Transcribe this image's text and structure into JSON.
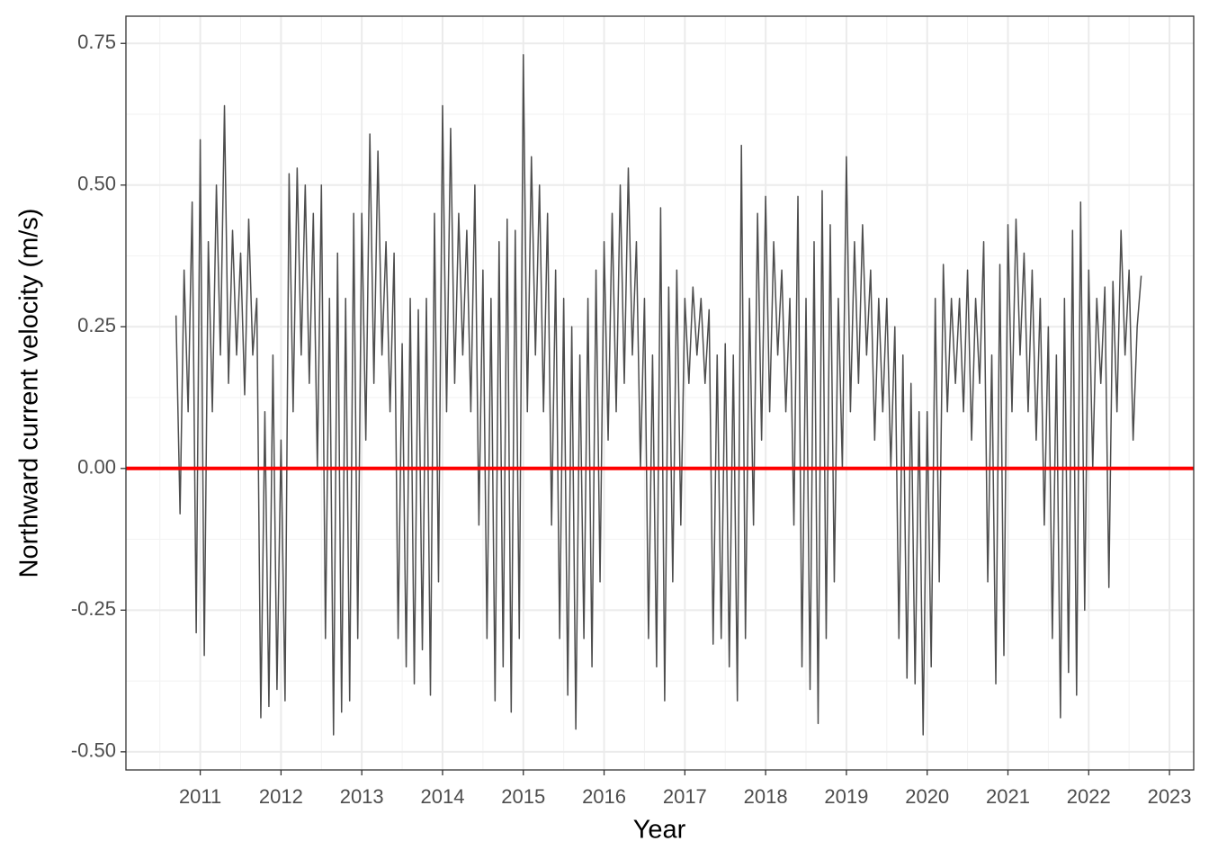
{
  "chart_data": {
    "type": "line",
    "xlabel": "Year",
    "ylabel": "Northward current velocity (m/s)",
    "xlim": [
      2010.08,
      2023.3
    ],
    "xticks": [
      2011,
      2012,
      2013,
      2014,
      2015,
      2016,
      2017,
      2018,
      2019,
      2020,
      2021,
      2022,
      2023
    ],
    "ylim": [
      -0.532,
      0.798
    ],
    "yticks": [
      {
        "value": -0.5,
        "label": "-0.50"
      },
      -0.25,
      {
        "value": 0,
        "label": "0.00"
      },
      0.25,
      {
        "value": 0.5,
        "label": "0.50"
      },
      0.75
    ],
    "grid": true,
    "minor_grid": true,
    "hline": {
      "value": 0,
      "color": "#ff0000"
    },
    "series": [
      {
        "color": "#4d4d4d",
        "x": [
          2010.7,
          2010.75,
          2010.8,
          2010.85,
          2010.9,
          2010.95,
          2011.0,
          2011.05,
          2011.1,
          2011.15,
          2011.2,
          2011.25,
          2011.3,
          2011.35,
          2011.4,
          2011.45,
          2011.5,
          2011.55,
          2011.6,
          2011.65,
          2011.7,
          2011.75,
          2011.8,
          2011.85,
          2011.9,
          2011.95,
          2012.0,
          2012.05,
          2012.1,
          2012.15,
          2012.2,
          2012.25,
          2012.3,
          2012.35,
          2012.4,
          2012.45,
          2012.5,
          2012.55,
          2012.6,
          2012.65,
          2012.7,
          2012.75,
          2012.8,
          2012.85,
          2012.9,
          2012.95,
          2013.0,
          2013.05,
          2013.1,
          2013.15,
          2013.2,
          2013.25,
          2013.3,
          2013.35,
          2013.4,
          2013.45,
          2013.5,
          2013.55,
          2013.6,
          2013.65,
          2013.7,
          2013.75,
          2013.8,
          2013.85,
          2013.9,
          2013.95,
          2014.0,
          2014.05,
          2014.1,
          2014.15,
          2014.2,
          2014.25,
          2014.3,
          2014.35,
          2014.4,
          2014.45,
          2014.5,
          2014.55,
          2014.6,
          2014.65,
          2014.7,
          2014.75,
          2014.8,
          2014.85,
          2014.9,
          2014.95,
          2015.0,
          2015.05,
          2015.1,
          2015.15,
          2015.2,
          2015.25,
          2015.3,
          2015.35,
          2015.4,
          2015.45,
          2015.5,
          2015.55,
          2015.6,
          2015.65,
          2015.7,
          2015.75,
          2015.8,
          2015.85,
          2015.9,
          2015.95,
          2016.0,
          2016.05,
          2016.1,
          2016.15,
          2016.2,
          2016.25,
          2016.3,
          2016.35,
          2016.4,
          2016.45,
          2016.5,
          2016.55,
          2016.6,
          2016.65,
          2016.7,
          2016.75,
          2016.8,
          2016.85,
          2016.9,
          2016.95,
          2017.0,
          2017.05,
          2017.1,
          2017.15,
          2017.2,
          2017.25,
          2017.3,
          2017.35,
          2017.4,
          2017.45,
          2017.5,
          2017.55,
          2017.6,
          2017.65,
          2017.7,
          2017.75,
          2017.8,
          2017.85,
          2017.9,
          2017.95,
          2018.0,
          2018.05,
          2018.1,
          2018.15,
          2018.2,
          2018.25,
          2018.3,
          2018.35,
          2018.4,
          2018.45,
          2018.5,
          2018.55,
          2018.6,
          2018.65,
          2018.7,
          2018.75,
          2018.8,
          2018.85,
          2018.9,
          2018.95,
          2019.0,
          2019.05,
          2019.1,
          2019.15,
          2019.2,
          2019.25,
          2019.3,
          2019.35,
          2019.4,
          2019.45,
          2019.5,
          2019.55,
          2019.6,
          2019.65,
          2019.7,
          2019.75,
          2019.8,
          2019.85,
          2019.9,
          2019.95,
          2020.0,
          2020.05,
          2020.1,
          2020.15,
          2020.2,
          2020.25,
          2020.3,
          2020.35,
          2020.4,
          2020.45,
          2020.5,
          2020.55,
          2020.6,
          2020.65,
          2020.7,
          2020.75,
          2020.8,
          2020.85,
          2020.9,
          2020.95,
          2021.0,
          2021.05,
          2021.1,
          2021.15,
          2021.2,
          2021.25,
          2021.3,
          2021.35,
          2021.4,
          2021.45,
          2021.5,
          2021.55,
          2021.6,
          2021.65,
          2021.7,
          2021.75,
          2021.8,
          2021.85,
          2021.9,
          2021.95,
          2022.0,
          2022.05,
          2022.1,
          2022.15,
          2022.2,
          2022.25,
          2022.3,
          2022.35,
          2022.4,
          2022.45,
          2022.5,
          2022.55,
          2022.6,
          2022.65
        ],
        "values": [
          0.27,
          -0.08,
          0.35,
          0.1,
          0.47,
          -0.29,
          0.58,
          -0.33,
          0.4,
          0.1,
          0.5,
          0.2,
          0.64,
          0.15,
          0.42,
          0.2,
          0.38,
          0.13,
          0.44,
          0.2,
          0.3,
          -0.44,
          0.1,
          -0.42,
          0.2,
          -0.39,
          0.05,
          -0.41,
          0.52,
          0.1,
          0.53,
          0.2,
          0.5,
          0.15,
          0.45,
          0.0,
          0.5,
          -0.3,
          0.3,
          -0.47,
          0.38,
          -0.43,
          0.3,
          -0.41,
          0.45,
          -0.3,
          0.45,
          0.05,
          0.59,
          0.15,
          0.56,
          0.2,
          0.4,
          0.1,
          0.38,
          -0.3,
          0.22,
          -0.35,
          0.3,
          -0.38,
          0.28,
          -0.32,
          0.3,
          -0.4,
          0.45,
          -0.2,
          0.64,
          0.1,
          0.6,
          0.15,
          0.45,
          0.2,
          0.42,
          0.1,
          0.5,
          -0.1,
          0.35,
          -0.3,
          0.3,
          -0.41,
          0.4,
          -0.35,
          0.44,
          -0.43,
          0.42,
          -0.3,
          0.73,
          0.1,
          0.55,
          0.2,
          0.5,
          0.1,
          0.45,
          -0.1,
          0.35,
          -0.3,
          0.3,
          -0.4,
          0.25,
          -0.46,
          0.2,
          -0.3,
          0.3,
          -0.35,
          0.35,
          -0.2,
          0.4,
          0.05,
          0.45,
          0.1,
          0.5,
          0.15,
          0.53,
          0.2,
          0.4,
          0.0,
          0.3,
          -0.3,
          0.2,
          -0.35,
          0.46,
          -0.41,
          0.32,
          -0.2,
          0.35,
          -0.1,
          0.3,
          0.15,
          0.32,
          0.2,
          0.3,
          0.15,
          0.28,
          -0.31,
          0.2,
          -0.3,
          0.22,
          -0.35,
          0.2,
          -0.41,
          0.57,
          -0.3,
          0.3,
          -0.1,
          0.45,
          0.05,
          0.48,
          0.1,
          0.4,
          0.2,
          0.35,
          0.1,
          0.3,
          -0.1,
          0.48,
          -0.35,
          0.3,
          -0.39,
          0.4,
          -0.45,
          0.49,
          -0.3,
          0.43,
          -0.2,
          0.3,
          0.0,
          0.55,
          0.1,
          0.4,
          0.15,
          0.43,
          0.2,
          0.35,
          0.05,
          0.3,
          0.1,
          0.3,
          0.0,
          0.25,
          -0.3,
          0.2,
          -0.37,
          0.15,
          -0.38,
          0.1,
          -0.47,
          0.1,
          -0.35,
          0.3,
          -0.2,
          0.36,
          0.1,
          0.3,
          0.15,
          0.3,
          0.1,
          0.35,
          0.05,
          0.3,
          0.15,
          0.4,
          -0.2,
          0.2,
          -0.38,
          0.36,
          -0.33,
          0.43,
          0.1,
          0.44,
          0.2,
          0.38,
          0.1,
          0.35,
          0.05,
          0.3,
          -0.1,
          0.25,
          -0.3,
          0.2,
          -0.44,
          0.3,
          -0.36,
          0.42,
          -0.4,
          0.47,
          -0.25,
          0.35,
          0.0,
          0.3,
          0.15,
          0.32,
          -0.21,
          0.33,
          0.1,
          0.42,
          0.2,
          0.35,
          0.05,
          0.25,
          0.34
        ]
      }
    ]
  }
}
